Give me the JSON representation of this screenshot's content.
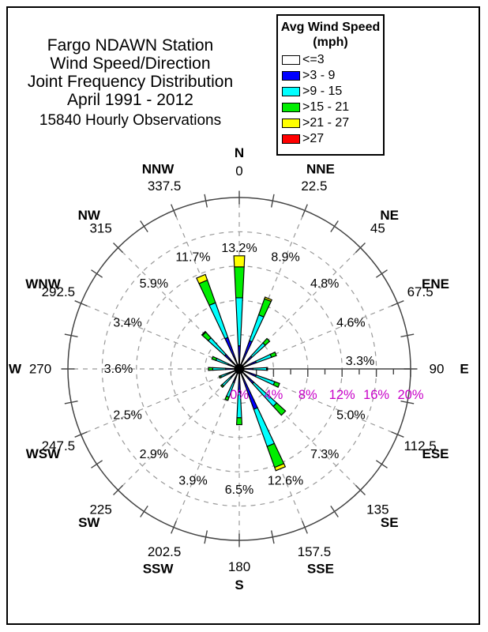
{
  "window": {
    "background": "#FFFFFF",
    "border_color": "#000000"
  },
  "title_block": {
    "lines": [
      "Fargo NDAWN Station",
      "Wind Speed/Direction",
      "Joint Frequency Distribution",
      "April 1991 - 2012"
    ],
    "observations": "15840 Hourly Observations"
  },
  "legend": {
    "title": "Avg Wind Speed",
    "units": "(mph)",
    "items": [
      {
        "label": "<=3",
        "color": "#FFFFFF"
      },
      {
        "label": ">3 - 9",
        "color": "#0000FF"
      },
      {
        "label": ">9 - 15",
        "color": "#00FFFF"
      },
      {
        "label": ">15 - 21",
        "color": "#00EE00"
      },
      {
        "label": ">21 - 27",
        "color": "#FFFF00"
      },
      {
        "label": ">27",
        "color": "#FF0000"
      }
    ]
  },
  "chart_data": {
    "type": "wind-rose stacked polar bar",
    "speed_bins": [
      "<=3",
      ">3 - 9",
      ">9 - 15",
      ">15 - 21",
      ">21 - 27",
      ">27"
    ],
    "bin_colors": [
      "#FFFFFF",
      "#0000FF",
      "#00FFFF",
      "#00EE00",
      "#FFFF00",
      "#FF0000"
    ],
    "radial_axis": {
      "tick_labels": [
        "0%",
        "4%",
        "8%",
        "12%",
        "16%",
        "20%"
      ],
      "max_percent": 20,
      "ring_step_percent": 4,
      "minor_tick_step_percent": 2,
      "label_color": "#C800C8",
      "grid_color": "#999999",
      "axis_color": "#444444"
    },
    "directions": [
      {
        "name": "N",
        "degree_label": "0",
        "angle": 0,
        "total_percent": 13.2,
        "total_label": "13.2%",
        "segments_percent": [
          0.1,
          2.6,
          5.6,
          3.6,
          1.3,
          0
        ]
      },
      {
        "name": "NNE",
        "degree_label": "22.5",
        "angle": 22.5,
        "total_percent": 8.9,
        "total_label": "8.9%",
        "segments_percent": [
          0.1,
          3.4,
          3.2,
          2.0,
          0.2,
          0
        ]
      },
      {
        "name": "NE",
        "degree_label": "45",
        "angle": 45,
        "total_percent": 4.8,
        "total_label": "4.8%",
        "segments_percent": [
          0.1,
          1.9,
          2.1,
          0.7,
          0,
          0
        ]
      },
      {
        "name": "ENE",
        "degree_label": "67.5",
        "angle": 67.5,
        "total_percent": 4.6,
        "total_label": "4.6%",
        "segments_percent": [
          0.1,
          2.0,
          1.9,
          0.6,
          0,
          0
        ]
      },
      {
        "name": "E",
        "degree_label": "90",
        "angle": 90,
        "total_percent": 3.3,
        "total_label": "3.3%",
        "segments_percent": [
          0.1,
          1.5,
          1.6,
          0.1,
          0,
          0
        ]
      },
      {
        "name": "ESE",
        "degree_label": "112.5",
        "angle": 112.5,
        "total_percent": 5.0,
        "total_label": "5.0%",
        "segments_percent": [
          0.1,
          2.0,
          2.3,
          0.6,
          0,
          0
        ]
      },
      {
        "name": "SE",
        "degree_label": "135",
        "angle": 135,
        "total_percent": 7.3,
        "total_label": "7.3%",
        "segments_percent": [
          0.1,
          2.2,
          3.6,
          1.4,
          0,
          0
        ]
      },
      {
        "name": "SSE",
        "degree_label": "157.5",
        "angle": 157.5,
        "total_percent": 12.6,
        "total_label": "12.6%",
        "segments_percent": [
          0.1,
          4.9,
          4.6,
          2.6,
          0.4,
          0
        ]
      },
      {
        "name": "S",
        "degree_label": "180",
        "angle": 180,
        "total_percent": 6.5,
        "total_label": "6.5%",
        "segments_percent": [
          0.1,
          2.6,
          3.0,
          0.8,
          0,
          0
        ]
      },
      {
        "name": "SSW",
        "degree_label": "202.5",
        "angle": 202.5,
        "total_percent": 3.9,
        "total_label": "3.9%",
        "segments_percent": [
          0.1,
          1.6,
          1.8,
          0.4,
          0,
          0
        ]
      },
      {
        "name": "SW",
        "degree_label": "225",
        "angle": 225,
        "total_percent": 2.9,
        "total_label": "2.9%",
        "segments_percent": [
          0.1,
          1.2,
          1.4,
          0.2,
          0,
          0
        ]
      },
      {
        "name": "WSW",
        "degree_label": "247.5",
        "angle": 247.5,
        "total_percent": 2.5,
        "total_label": "2.5%",
        "segments_percent": [
          0.1,
          1.1,
          1.1,
          0.2,
          0,
          0
        ]
      },
      {
        "name": "W",
        "degree_label": "270",
        "angle": 270,
        "total_percent": 3.6,
        "total_label": "3.6%",
        "segments_percent": [
          0.1,
          1.5,
          1.5,
          0.5,
          0,
          0
        ]
      },
      {
        "name": "WNW",
        "degree_label": "292.5",
        "angle": 292.5,
        "total_percent": 3.4,
        "total_label": "3.4%",
        "segments_percent": [
          0.1,
          1.3,
          1.5,
          0.5,
          0,
          0
        ]
      },
      {
        "name": "NW",
        "degree_label": "315",
        "angle": 315,
        "total_percent": 5.9,
        "total_label": "5.9%",
        "segments_percent": [
          0.1,
          2.2,
          2.6,
          0.9,
          0.1,
          0
        ]
      },
      {
        "name": "NNW",
        "degree_label": "337.5",
        "angle": 337.5,
        "total_percent": 11.7,
        "total_label": "11.7%",
        "segments_percent": [
          0.1,
          3.8,
          4.3,
          2.8,
          0.7,
          0
        ]
      }
    ]
  }
}
